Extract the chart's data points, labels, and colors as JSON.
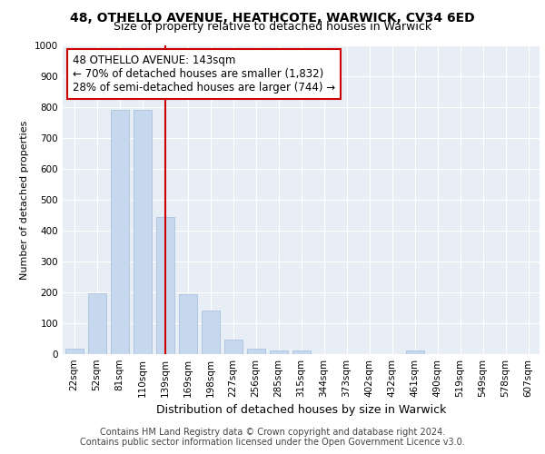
{
  "title": "48, OTHELLO AVENUE, HEATHCOTE, WARWICK, CV34 6ED",
  "subtitle": "Size of property relative to detached houses in Warwick",
  "xlabel": "Distribution of detached houses by size in Warwick",
  "ylabel": "Number of detached properties",
  "categories": [
    "22sqm",
    "52sqm",
    "81sqm",
    "110sqm",
    "139sqm",
    "169sqm",
    "198sqm",
    "227sqm",
    "256sqm",
    "285sqm",
    "315sqm",
    "344sqm",
    "373sqm",
    "402sqm",
    "432sqm",
    "461sqm",
    "490sqm",
    "519sqm",
    "549sqm",
    "578sqm",
    "607sqm"
  ],
  "values": [
    17,
    197,
    790,
    790,
    443,
    195,
    140,
    48,
    17,
    11,
    11,
    0,
    0,
    0,
    0,
    11,
    0,
    0,
    0,
    0,
    0
  ],
  "bar_color": "#c5d8ed",
  "bar_edge_color": "#a0bcd8",
  "vline_x": 4,
  "vline_color": "#cc0000",
  "annotation_text": "48 OTHELLO AVENUE: 143sqm\n← 70% of detached houses are smaller (1,832)\n28% of semi-detached houses are larger (744) →",
  "annotation_box_color": "#ffffff",
  "annotation_box_edge": "#cc0000",
  "ylim": [
    0,
    1000
  ],
  "yticks": [
    0,
    100,
    200,
    300,
    400,
    500,
    600,
    700,
    800,
    900,
    1000
  ],
  "background_color": "#e8eef5",
  "grid_color": "#ffffff",
  "footer_line1": "Contains HM Land Registry data © Crown copyright and database right 2024.",
  "footer_line2": "Contains public sector information licensed under the Open Government Licence v3.0.",
  "title_fontsize": 10,
  "subtitle_fontsize": 9,
  "xlabel_fontsize": 9,
  "ylabel_fontsize": 8,
  "tick_fontsize": 7.5,
  "annotation_fontsize": 8.5,
  "footer_fontsize": 7
}
